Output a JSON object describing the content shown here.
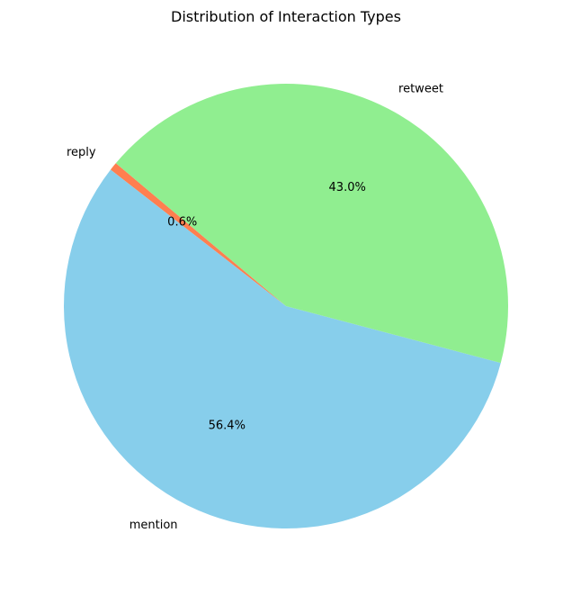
{
  "chart_data": {
    "type": "pie",
    "title": "Distribution of Interaction Types",
    "start_angle_deg": 140,
    "direction": "counterclockwise",
    "slices": [
      {
        "label": "reply",
        "value": 0.6,
        "pct_label": "0.6%",
        "color": "#ff7f50"
      },
      {
        "label": "mention",
        "value": 56.4,
        "pct_label": "56.4%",
        "color": "#87ceeb"
      },
      {
        "label": "retweet",
        "value": 43.0,
        "pct_label": "43.0%",
        "color": "#90ee90"
      }
    ]
  }
}
